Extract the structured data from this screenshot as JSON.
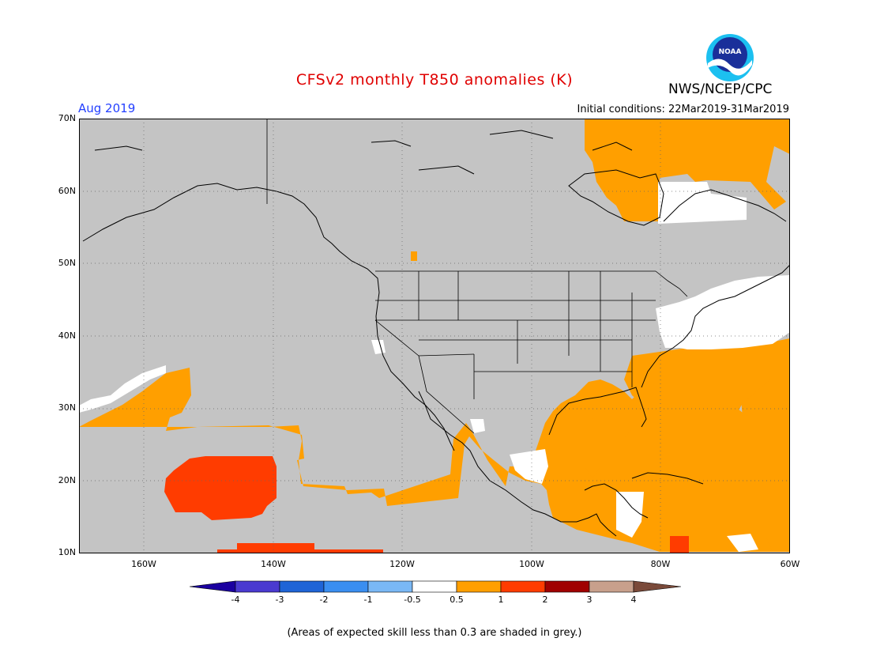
{
  "title": "CFSv2 monthly T850 anomalies (K)",
  "agency": "NWS/NCEP/CPC",
  "logo_text": "NOAA",
  "month": "Aug 2019",
  "initial_conditions": "Initial conditions: 22Mar2019-31Mar2019",
  "footnote": "(Areas of expected skill less than 0.3 are shaded in grey.)",
  "lat_labels": [
    "70N",
    "60N",
    "50N",
    "40N",
    "30N",
    "20N",
    "10N"
  ],
  "lon_labels": [
    "160W",
    "140W",
    "120W",
    "100W",
    "80W",
    "60W"
  ],
  "colorbar": {
    "labels": [
      "-4",
      "-3",
      "-2",
      "-1",
      "-0.5",
      "0.5",
      "1",
      "2",
      "3",
      "4"
    ],
    "colors": [
      "#1b00a0",
      "#4a3ad0",
      "#1f64d6",
      "#3a8ef0",
      "#7ab8f5",
      "#ffffff",
      "#ff9f00",
      "#ff3c00",
      "#a00000",
      "#c8a08c",
      "#7a4a3a"
    ]
  },
  "map_colors": {
    "grey": "#c4c4c4",
    "orange": "#ff9f00",
    "red": "#ff3c00",
    "white": "#ffffff"
  }
}
